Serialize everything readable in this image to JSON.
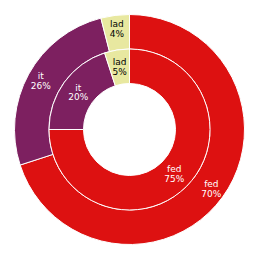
{
  "chart_data": {
    "type": "donut",
    "categories": [
      "fed",
      "it",
      "lad"
    ],
    "series": [
      {
        "values": [
          70,
          26,
          4
        ],
        "value_labels": [
          "70%",
          "26%",
          "4%"
        ],
        "colors": [
          "#dd1111",
          "#7d2060",
          "#e8e8a0"
        ]
      },
      {
        "values": [
          75,
          20,
          5
        ],
        "value_labels": [
          "75%",
          "20%",
          "5%"
        ],
        "colors": [
          "#dd1111",
          "#7d2060",
          "#e8e8a0"
        ]
      }
    ],
    "data_labels": true
  }
}
